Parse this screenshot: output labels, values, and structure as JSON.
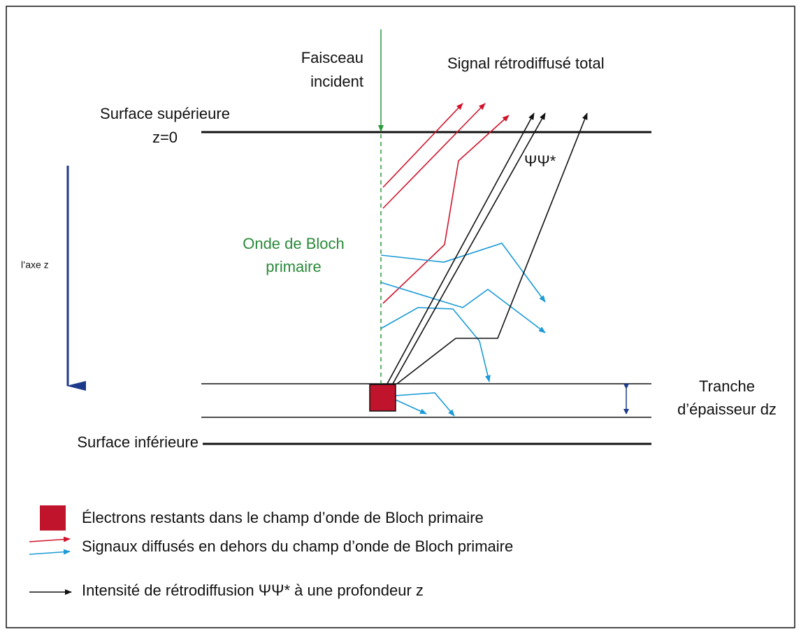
{
  "labels": {
    "beam": [
      "Faisceau",
      "incident"
    ],
    "total_signal": "Signal rétrodiffusé total",
    "top_surface": [
      "Surface supérieure",
      "z=0"
    ],
    "z_axis": "l’axe z",
    "bloch_wave": [
      "Onde de Bloch",
      "primaire"
    ],
    "psi": "ΨΨ*",
    "slice": [
      "Tranche",
      "d’épaisseur dz"
    ],
    "bottom_surface": "Surface inférieure"
  },
  "legend": [
    "Électrons restants dans le champ  d’onde de Bloch primaire",
    "Signaux diffusés en dehors  du champ d’onde de Bloch primaire",
    "Intensité de rétrodiffusion ΨΨ* à une profondeur z"
  ]
}
